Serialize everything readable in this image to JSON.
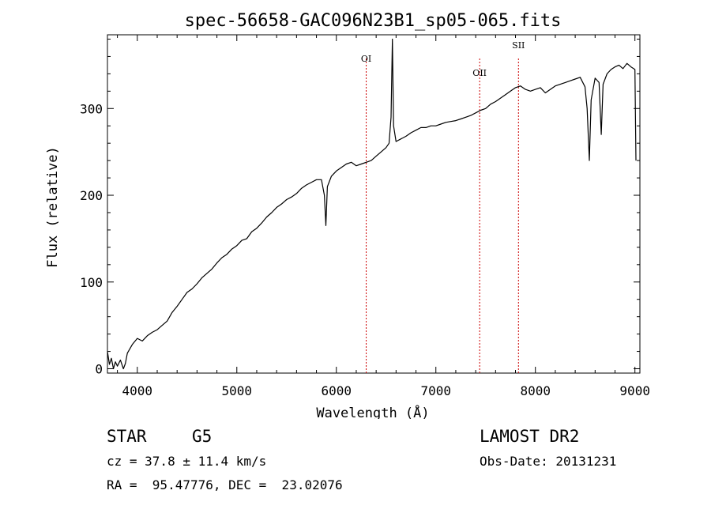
{
  "chart_data": {
    "type": "line",
    "title": "spec-56658-GAC096N23B1_sp05-065.fits",
    "xlabel": "Wavelength (Å)",
    "ylabel": "Flux (relative)",
    "xlim": [
      3700,
      9050
    ],
    "ylim": [
      -5,
      385
    ],
    "xticks": [
      4000,
      5000,
      6000,
      7000,
      8000,
      9000
    ],
    "yticks": [
      0,
      100,
      200,
      300
    ],
    "grid": false,
    "series": [
      {
        "x": [
          3700,
          3720,
          3740,
          3760,
          3780,
          3800,
          3830,
          3860,
          3880,
          3900,
          3950,
          4000,
          4050,
          4100,
          4150,
          4200,
          4250,
          4300,
          4350,
          4400,
          4450,
          4500,
          4550,
          4600,
          4650,
          4700,
          4750,
          4800,
          4850,
          4900,
          4950,
          5000,
          5050,
          5100,
          5150,
          5200,
          5250,
          5300,
          5350,
          5400,
          5450,
          5500,
          5550,
          5600,
          5650,
          5700,
          5750,
          5800,
          5850,
          5880,
          5895,
          5910,
          5950,
          6000,
          6050,
          6100,
          6150,
          6200,
          6250,
          6300,
          6350,
          6400,
          6450,
          6500,
          6530,
          6550,
          6563,
          6575,
          6600,
          6650,
          6700,
          6750,
          6800,
          6850,
          6900,
          6950,
          7000,
          7050,
          7100,
          7150,
          7200,
          7250,
          7300,
          7350,
          7400,
          7450,
          7500,
          7550,
          7600,
          7650,
          7700,
          7750,
          7800,
          7850,
          7900,
          7950,
          8000,
          8050,
          8100,
          8150,
          8200,
          8250,
          8300,
          8350,
          8400,
          8450,
          8498,
          8520,
          8542,
          8560,
          8600,
          8640,
          8662,
          8680,
          8720,
          8760,
          8800,
          8840,
          8880,
          8920,
          8960,
          9000,
          9010
        ],
        "values": [
          20,
          5,
          12,
          0,
          8,
          3,
          10,
          0,
          6,
          18,
          28,
          35,
          32,
          38,
          42,
          45,
          50,
          55,
          65,
          72,
          80,
          88,
          92,
          98,
          105,
          110,
          115,
          122,
          128,
          132,
          138,
          142,
          148,
          150,
          158,
          162,
          168,
          175,
          180,
          186,
          190,
          195,
          198,
          202,
          208,
          212,
          215,
          218,
          218,
          200,
          165,
          210,
          222,
          228,
          232,
          236,
          238,
          234,
          236,
          238,
          240,
          245,
          250,
          255,
          260,
          290,
          380,
          280,
          262,
          265,
          268,
          272,
          275,
          278,
          278,
          280,
          280,
          282,
          284,
          285,
          286,
          288,
          290,
          292,
          295,
          298,
          300,
          305,
          308,
          312,
          316,
          320,
          324,
          326,
          322,
          320,
          322,
          324,
          318,
          322,
          326,
          328,
          330,
          332,
          334,
          336,
          325,
          300,
          240,
          310,
          335,
          330,
          270,
          328,
          340,
          345,
          348,
          350,
          346,
          352,
          348,
          345,
          240
        ]
      }
    ],
    "lines": [
      {
        "label": "OI",
        "x": 6300
      },
      {
        "label": "OII",
        "x": 7440
      },
      {
        "label": "SII",
        "x": 7830
      }
    ]
  },
  "info": {
    "object_class": "STAR",
    "subclass": "G5",
    "survey": "LAMOST DR2",
    "redshift": "cz = 37.8 ± 11.4 km/s",
    "obs_date": "Obs-Date: 20131231",
    "coords": "RA =  95.47776, DEC =  23.02076"
  },
  "colors": {
    "spectrum": "#000000",
    "line_markers": "#cc0000"
  }
}
